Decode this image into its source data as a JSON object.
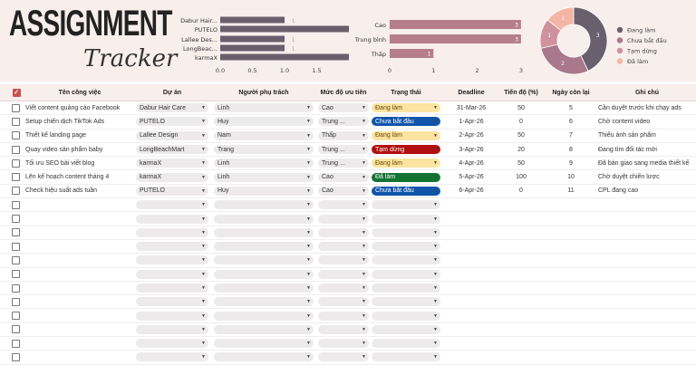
{
  "title": {
    "main": "ASSIGNMENT",
    "sub": "Tracker"
  },
  "chart_data": [
    {
      "type": "bar",
      "orientation": "horizontal",
      "categories": [
        "Dabur Hair...",
        "PUTELO",
        "Lallee Des...",
        "LongBeac...",
        "karmaX"
      ],
      "values": [
        1,
        2,
        1,
        1,
        2
      ],
      "data_labels": [
        "1",
        "",
        "1",
        "1",
        ""
      ],
      "xticks": [
        "0.0",
        "0.5",
        "1.0",
        "1.5"
      ],
      "xlim": [
        0,
        2
      ],
      "color": "#6b5f6e"
    },
    {
      "type": "bar",
      "orientation": "horizontal",
      "categories": [
        "Cao",
        "Trung bình",
        "Thấp"
      ],
      "values": [
        3,
        3,
        1
      ],
      "data_labels": [
        "3",
        "3",
        "1"
      ],
      "xticks": [
        "0",
        "1",
        "2",
        "3"
      ],
      "xlim": [
        0,
        3
      ],
      "color": "#b57e8a"
    },
    {
      "type": "pie",
      "donut": true,
      "categories": [
        "Đang làm",
        "Chưa bắt đầu",
        "Tạm dừng",
        "Đã làm"
      ],
      "values": [
        3,
        2,
        1,
        1
      ],
      "data_labels": [
        "3",
        "2",
        "1",
        "1"
      ],
      "colors": [
        "#6b5f6e",
        "#a9788a",
        "#d0909e",
        "#f5b5a5"
      ],
      "legend": "right"
    }
  ],
  "table": {
    "headers": [
      "Tên công việc",
      "Dự án",
      "Người phụ trách",
      "Mức độ ưu tiên",
      "Trạng thái",
      "Deadline",
      "Tiến độ (%)",
      "Ngày còn lại",
      "Ghi chú"
    ],
    "rows": [
      {
        "task": "Viết content quảng cáo Facebook",
        "project": "Dabur Hair Care",
        "owner": "Linh",
        "priority": "Cao",
        "status": "Đang làm",
        "deadline": "31-Mar-26",
        "progress": "50",
        "days": "5",
        "note": "Cần duyệt trước khi chạy ads"
      },
      {
        "task": "Setup chiến dịch TikTok Ads",
        "project": "PUTELO",
        "owner": "Huy",
        "priority": "Trung ...",
        "status": "Chưa bắt đầu",
        "deadline": "1-Apr-26",
        "progress": "0",
        "days": "6",
        "note": "Chờ content video"
      },
      {
        "task": "Thiết kế landing page",
        "project": "Lallee Design",
        "owner": "Nam",
        "priority": "Thấp",
        "status": "Đang làm",
        "deadline": "2-Apr-26",
        "progress": "50",
        "days": "7",
        "note": "Thiếu ảnh sản phẩm"
      },
      {
        "task": "Quay video sản phẩm baby",
        "project": "LongBeachMart",
        "owner": "Trang",
        "priority": "Trung ...",
        "status": "Tạm dừng",
        "deadline": "3-Apr-26",
        "progress": "20",
        "days": "8",
        "note": "Đang tìm đối tác mới"
      },
      {
        "task": "Tối ưu SEO bài viết blog",
        "project": "karmaX",
        "owner": "Linh",
        "priority": "Trung ...",
        "status": "Đang làm",
        "deadline": "4-Apr-26",
        "progress": "50",
        "days": "9",
        "note": "Đã bàn giao sang media thiết kế"
      },
      {
        "task": "Lên kế hoạch content tháng 4",
        "project": "karmaX",
        "owner": "Linh",
        "priority": "Cao",
        "status": "Đã làm",
        "deadline": "5-Apr-26",
        "progress": "100",
        "days": "10",
        "note": "Chờ duyệt chiến lược"
      },
      {
        "task": "Check hiệu suất ads tuần",
        "project": "PUTELO",
        "owner": "Huy",
        "priority": "Cao",
        "status": "Chưa bắt đầu",
        "deadline": "6-Apr-26",
        "progress": "0",
        "days": "11",
        "note": "CPL đang cao"
      }
    ],
    "status_colors": {
      "Đang làm": "#fbe3a0",
      "Chưa bắt đầu": "#1155aa",
      "Tạm dừng": "#b10f0f",
      "Đã làm": "#137333"
    },
    "status_text_colors": {
      "Đang làm": "#6a4a00",
      "Chưa bắt đầu": "#ffffff",
      "Tạm dừng": "#ffffff",
      "Đã làm": "#ffffff"
    }
  }
}
